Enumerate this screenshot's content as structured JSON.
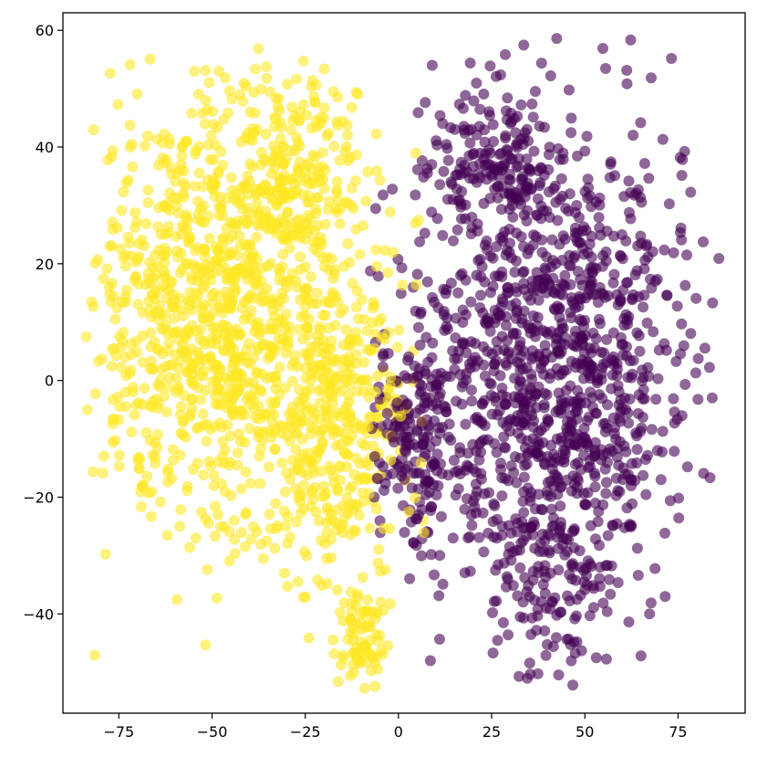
{
  "chart_data": {
    "type": "scatter",
    "title": "",
    "xlabel": "",
    "ylabel": "",
    "xlim": [
      -90,
      93
    ],
    "ylim": [
      -57,
      63
    ],
    "xticks": [
      -75,
      -50,
      -25,
      0,
      25,
      50,
      75
    ],
    "yticks": [
      -40,
      -20,
      0,
      20,
      40,
      60
    ],
    "xtick_labels": [
      "−75",
      "−50",
      "−25",
      "0",
      "25",
      "50",
      "75"
    ],
    "ytick_labels": [
      "−40",
      "−20",
      "0",
      "20",
      "40",
      "60"
    ],
    "grid": false,
    "legend": false,
    "marker_alpha": 0.6,
    "series": [
      {
        "color": "#fde725",
        "clusters": [
          {
            "cx": -48,
            "cy": 10,
            "sx": 17,
            "sy": 19,
            "n": 1050
          },
          {
            "cx": -15,
            "cy": -8,
            "sx": 9,
            "sy": 14,
            "n": 330
          },
          {
            "cx": -28,
            "cy": 35,
            "sx": 11,
            "sy": 10,
            "n": 220
          },
          {
            "cx": -10,
            "cy": -45,
            "sx": 3.5,
            "sy": 5,
            "n": 80
          }
        ]
      },
      {
        "color": "#440154",
        "clusters": [
          {
            "cx": 42,
            "cy": 3,
            "sx": 19,
            "sy": 19,
            "n": 1100
          },
          {
            "cx": 5,
            "cy": -10,
            "sx": 6,
            "sy": 10,
            "n": 180
          },
          {
            "cx": 25,
            "cy": 38,
            "sx": 9,
            "sy": 7,
            "n": 160
          },
          {
            "cx": 40,
            "cy": -35,
            "sx": 10,
            "sy": 7,
            "n": 120
          }
        ]
      }
    ]
  }
}
